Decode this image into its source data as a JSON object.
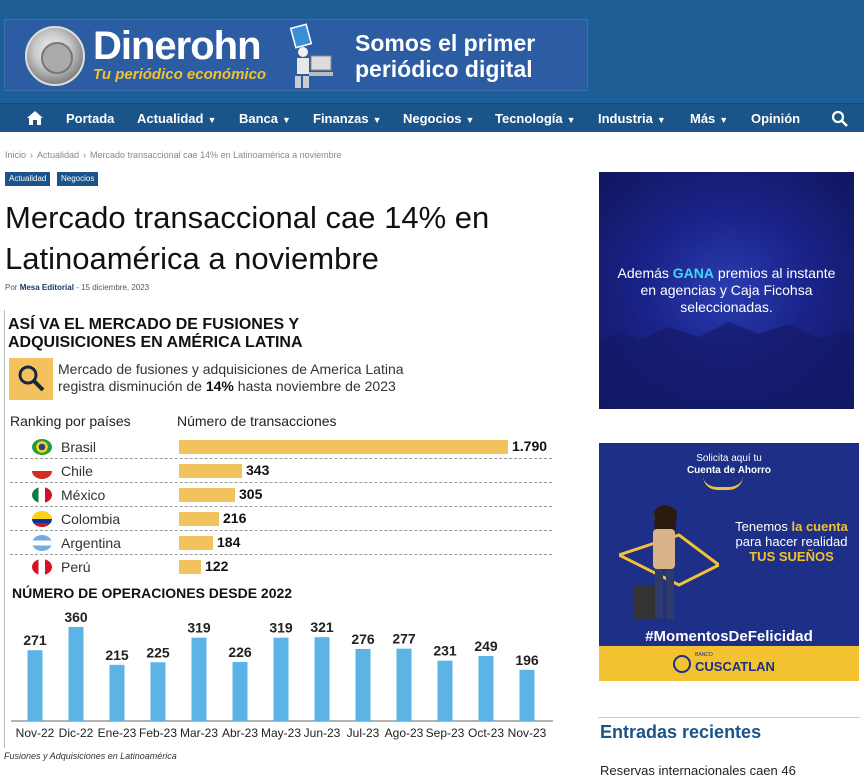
{
  "site": {
    "name": "Dinerohn",
    "tagline": "Tu periódico económico",
    "slogan": "Somos el primer periódico digital"
  },
  "nav": {
    "items": [
      "Portada",
      "Actualidad",
      "Banca",
      "Finanzas",
      "Negocios",
      "Tecnología",
      "Industria",
      "Más",
      "Opinión"
    ],
    "home_icon": "home-icon",
    "search_icon": "search-icon"
  },
  "breadcrumb": [
    "Inicio",
    "Actualidad",
    "Mercado transaccional cae 14% en Latinoamérica a noviembre"
  ],
  "tags": [
    "Actualidad",
    "Negocios"
  ],
  "article": {
    "title": "Mercado transaccional cae 14% en Latinoamérica a noviembre",
    "by_prefix": "Por",
    "author": "Mesa Editorial",
    "separator": "-",
    "date": "15 diciembre, 2023",
    "caption": "Fusiones y Adquisiciones en Latinoamérica"
  },
  "infographic": {
    "title": "ASÍ VA EL MERCADO DE FUSIONES Y ADQUISICIONES EN AMÉRICA LATINA",
    "desc_line1": "Mercado de fusiones y adquisiciones de America Latina",
    "desc_line2_pre": "registra disminución de ",
    "desc_line2_bold": "14%",
    "desc_line2_post": " hasta noviembre de 2023",
    "rank_label": "Ranking por países",
    "trans_label": "Número de transacciones",
    "ops_title": "NÚMERO DE OPERACIONES DESDE 2022",
    "bar_color": "#f2c25e",
    "column_color": "#5cb3e6"
  },
  "chart_data": [
    {
      "type": "bar",
      "orientation": "horizontal",
      "title": "Número de transacciones",
      "categories": [
        "Brasil",
        "Chile",
        "México",
        "Colombia",
        "Argentina",
        "Perú"
      ],
      "values": [
        1790,
        343,
        305,
        216,
        184,
        122
      ],
      "value_labels": [
        "1.790",
        "343",
        "305",
        "216",
        "184",
        "122"
      ],
      "xlim": [
        0,
        1790
      ]
    },
    {
      "type": "bar",
      "title": "NÚMERO DE OPERACIONES DESDE 2022",
      "categories": [
        "Nov-22",
        "Dic-22",
        "Ene-23",
        "Feb-23",
        "Mar-23",
        "Abr-23",
        "May-23",
        "Jun-23",
        "Jul-23",
        "Ago-23",
        "Sep-23",
        "Oct-23",
        "Nov-23"
      ],
      "values": [
        271,
        360,
        215,
        225,
        319,
        226,
        319,
        321,
        276,
        277,
        231,
        249,
        196
      ],
      "ylim": [
        0,
        360
      ]
    }
  ],
  "ads": {
    "ad1_pre": "Además ",
    "ad1_hl": "GANA",
    "ad1_post": " premios al instante en agencias y Caja Ficohsa seleccionadas.",
    "ad2_top1": "Solicita aquí tu",
    "ad2_top2": "Cuenta de Ahorro",
    "ad2_copy_pre": "Tenemos ",
    "ad2_copy_hl": "la cuenta",
    "ad2_copy_mid": " para hacer realidad ",
    "ad2_copy_hl2": "TUS SUEÑOS",
    "ad2_hashtag": "#MomentosDeFelicidad",
    "ad2_brand_small": "BANCO",
    "ad2_brand": "CUSCATLAN"
  },
  "sidebar": {
    "recent_title": "Entradas recientes",
    "recent_first": "Reservas internacionales caen 46"
  }
}
